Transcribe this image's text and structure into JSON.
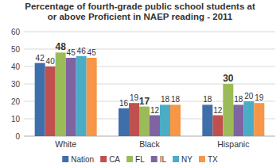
{
  "chart_data": {
    "type": "bar",
    "title": "Percentage of fourth-grade public school students at or above Proficient in NAEP reading - 2011",
    "categories": [
      "White",
      "Black",
      "Hispanic"
    ],
    "series": [
      {
        "name": "Nation",
        "color": "#3f6faa",
        "values": [
          42,
          16,
          18
        ]
      },
      {
        "name": "CA",
        "color": "#c0504d",
        "values": [
          40,
          19,
          12
        ]
      },
      {
        "name": "FL",
        "color": "#9bbb59",
        "values": [
          48,
          17,
          30
        ]
      },
      {
        "name": "IL",
        "color": "#8064a2",
        "values": [
          45,
          12,
          18
        ]
      },
      {
        "name": "NY",
        "color": "#4bacc6",
        "values": [
          46,
          18,
          20
        ]
      },
      {
        "name": "TX",
        "color": "#f79646",
        "values": [
          45,
          18,
          19
        ]
      }
    ],
    "ylim": [
      0,
      60
    ],
    "yticks": [
      0,
      10,
      20,
      30,
      40,
      50,
      60
    ],
    "grid": true,
    "legend": "bottom",
    "data_labels": true
  }
}
